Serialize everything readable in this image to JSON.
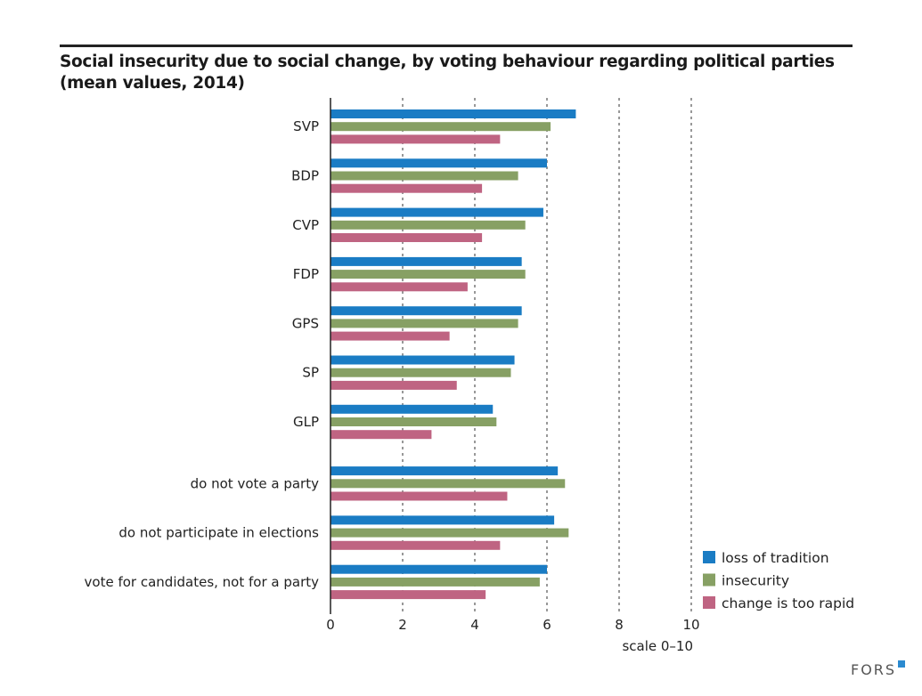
{
  "title_line1": "Social insecurity due to social change, by voting behaviour regarding political parties",
  "title_line2": "(mean values, 2014)",
  "logo": "FORS",
  "chart_data": {
    "type": "bar",
    "orientation": "horizontal",
    "title": "Social insecurity due to social change, by voting behaviour regarding political parties (mean values, 2014)",
    "xlabel": "scale 0–10",
    "ylabel": "",
    "xlim": [
      0,
      10
    ],
    "xticks": [
      0,
      2,
      4,
      6,
      8,
      10
    ],
    "grid": "vertical dashed",
    "legend_position": "bottom-right",
    "categories": [
      "SVP",
      "BDP",
      "CVP",
      "FDP",
      "GPS",
      "SP",
      "GLP",
      "do not vote a party",
      "do not participate in elections",
      "vote for candidates, not for a party"
    ],
    "series": [
      {
        "name": "loss of tradition",
        "color": "#1a7cc4",
        "values": [
          6.8,
          6.0,
          5.9,
          5.3,
          5.3,
          5.1,
          4.5,
          6.3,
          6.2,
          6.0
        ]
      },
      {
        "name": "insecurity",
        "color": "#87a064",
        "values": [
          6.1,
          5.2,
          5.4,
          5.4,
          5.2,
          5.0,
          4.6,
          6.5,
          6.6,
          5.8
        ]
      },
      {
        "name": "change is too rapid",
        "color": "#bf6482",
        "values": [
          4.7,
          4.2,
          4.2,
          3.8,
          3.3,
          3.5,
          2.8,
          4.9,
          4.7,
          4.3
        ]
      }
    ]
  }
}
